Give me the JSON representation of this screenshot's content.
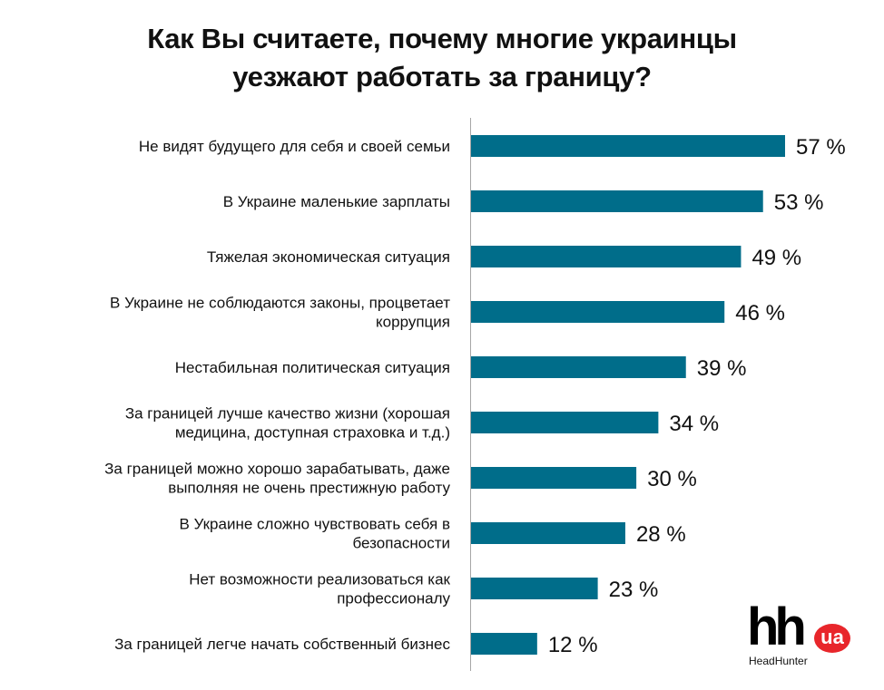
{
  "chart_data": {
    "type": "bar",
    "orientation": "horizontal",
    "title": "Как Вы считаете, почему многие украинцы уезжают работать за границу?",
    "title_lines": [
      "Как Вы считаете, почему многие украинцы",
      "уезжают работать за границу?"
    ],
    "categories": [
      [
        "Не видят будущего для себя и своей семьи"
      ],
      [
        "В Украине маленькие зарплаты"
      ],
      [
        "Тяжелая экономическая ситуация"
      ],
      [
        "В Украине не соблюдаются законы, процветает",
        "коррупция"
      ],
      [
        "Нестабильная политическая ситуация"
      ],
      [
        "За границей лучше качество жизни (хорошая",
        "медицина, доступная страховка и т.д.)"
      ],
      [
        "За границей можно хорошо зарабатывать, даже",
        "выполняя не очень престижную работу"
      ],
      [
        "В Украине сложно чувствовать себя в",
        "безопасности"
      ],
      [
        "Нет возможности реализоваться как",
        "профессионалу"
      ],
      [
        "За границей легче начать собственный бизнес"
      ]
    ],
    "values": [
      57,
      53,
      49,
      46,
      39,
      34,
      30,
      28,
      23,
      12
    ],
    "value_labels": [
      "57 %",
      "53 %",
      "49 %",
      "46 %",
      "39 %",
      "34 %",
      "30 %",
      "28 %",
      "23 %",
      "12 %"
    ],
    "xlim": [
      0,
      60
    ],
    "bar_color": "#006d8a",
    "axis_color": "#a6a6a6",
    "grid": false,
    "legend": "none"
  },
  "logo": {
    "mark": "hh",
    "badge": "ua",
    "name": "HeadHunter",
    "badge_color": "#e8262b"
  }
}
